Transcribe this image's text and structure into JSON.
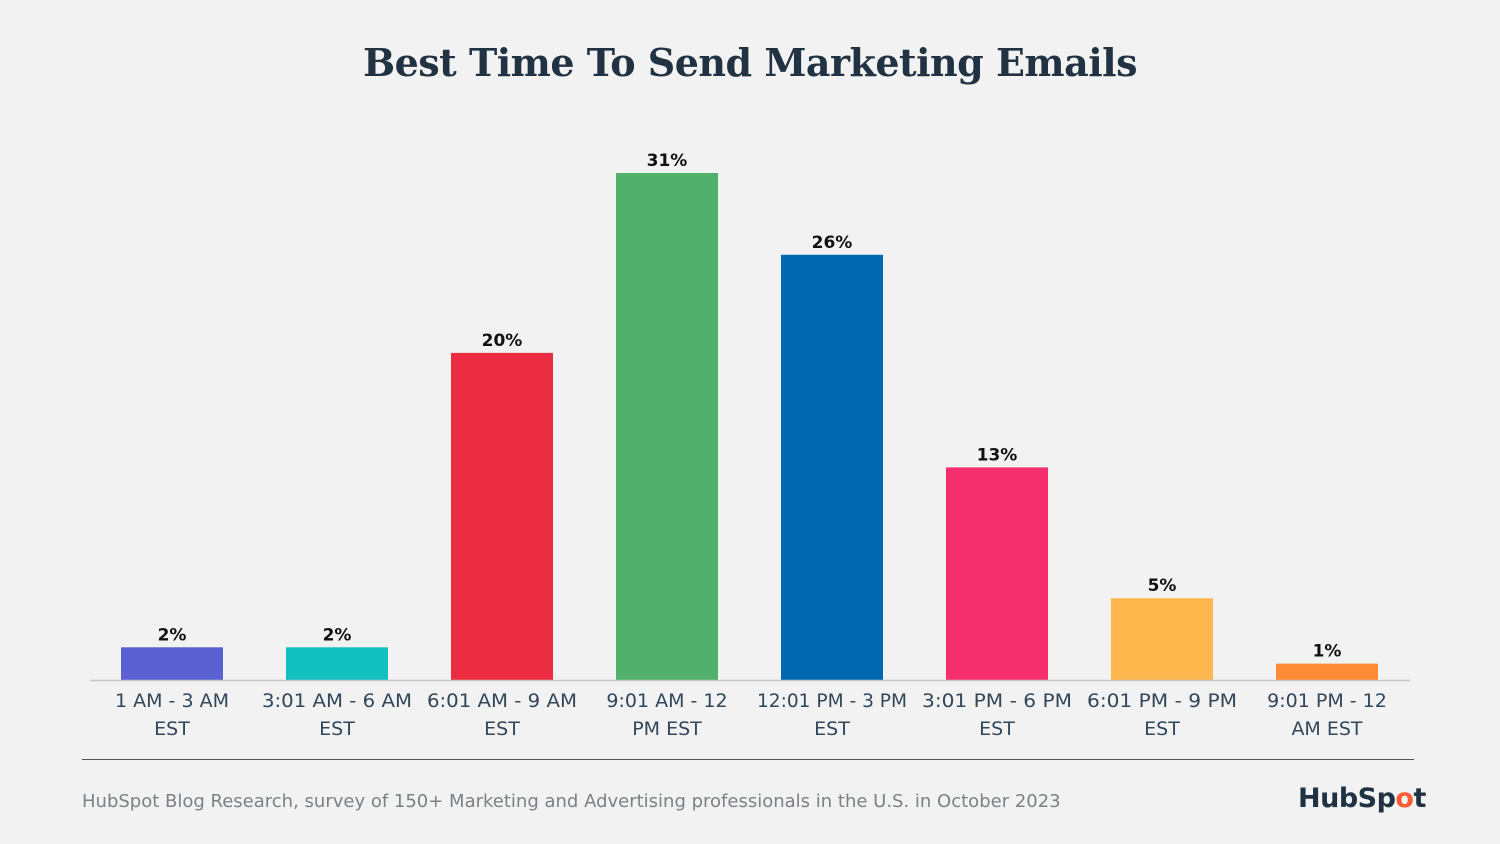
{
  "chart_data": {
    "type": "bar",
    "title": "Best Time To Send Marketing Emails",
    "categories": [
      [
        "1 AM - 3 AM",
        "EST"
      ],
      [
        "3:01 AM - 6 AM",
        "EST"
      ],
      [
        "6:01 AM - 9 AM",
        "EST"
      ],
      [
        "9:01 AM - 12",
        "PM EST"
      ],
      [
        "12:01 PM - 3 PM",
        "EST"
      ],
      [
        "3:01 PM - 6 PM",
        "EST"
      ],
      [
        "6:01 PM - 9 PM",
        "EST"
      ],
      [
        "9:01 PM - 12",
        "AM EST"
      ]
    ],
    "values": [
      2,
      2,
      20,
      31,
      26,
      13,
      5,
      1
    ],
    "data_labels": [
      "2%",
      "2%",
      "20%",
      "31%",
      "26%",
      "13%",
      "5%",
      "1%"
    ],
    "colors": [
      "#5b60d2",
      "#12c1bf",
      "#ec2c40",
      "#50b06c",
      "#0067b1",
      "#f52e6e",
      "#fdb74c",
      "#fd8a35"
    ],
    "xlabel": "",
    "ylabel": "",
    "ylim": [
      0,
      31
    ],
    "grid": false,
    "legend": "none"
  },
  "footer": {
    "source": "HubSpot Blog Research, survey of 150+ Marketing and Advertising professionals in the U.S. in October 2023",
    "logo_text_a": "HubSp",
    "logo_text_o": "o",
    "logo_text_b": "t"
  }
}
